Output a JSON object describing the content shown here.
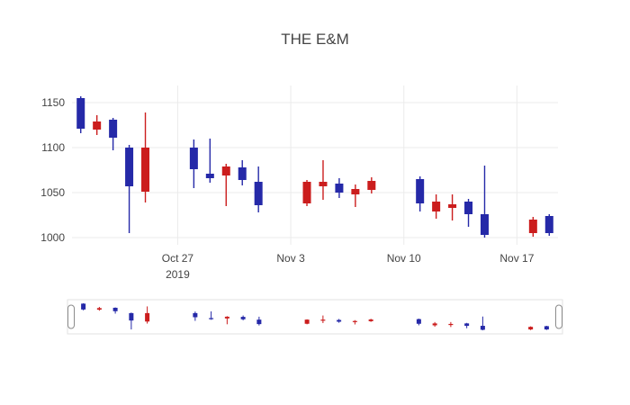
{
  "chart_data": {
    "type": "candlestick",
    "title": "THE E&M",
    "xlabel": "",
    "ylabel": "",
    "yticks": [
      1000,
      1050,
      1100,
      1150
    ],
    "ylim": [
      992,
      1169
    ],
    "xlim": [
      "2019-10-20T11:00:00Z",
      "2019-11-19T13:00:00Z"
    ],
    "xticks": [
      {
        "date": "2019-10-27",
        "label": "Oct 27",
        "sublabel": "2019"
      },
      {
        "date": "2019-11-03",
        "label": "Nov 3"
      },
      {
        "date": "2019-11-10",
        "label": "Nov 10"
      },
      {
        "date": "2019-11-17",
        "label": "Nov 17"
      }
    ],
    "grid": true,
    "legend": false,
    "increasing_color": "#cb1d1d",
    "decreasing_color": "#2529a8",
    "grid_color": "#ebebeb",
    "tick_color": "#444444",
    "slider_border_color": "#e2e2e2",
    "handle_border_color": "#8c8c8c",
    "candles": [
      {
        "date": "2019-10-21",
        "open": 1155,
        "high": 1157,
        "low": 1116,
        "close": 1121
      },
      {
        "date": "2019-10-22",
        "open": 1120,
        "high": 1136,
        "low": 1114,
        "close": 1129
      },
      {
        "date": "2019-10-23",
        "open": 1131,
        "high": 1133,
        "low": 1097,
        "close": 1111
      },
      {
        "date": "2019-10-24",
        "open": 1100,
        "high": 1103,
        "low": 1005,
        "close": 1057
      },
      {
        "date": "2019-10-25",
        "open": 1051,
        "high": 1139,
        "low": 1039,
        "close": 1100
      },
      {
        "date": "2019-10-28",
        "open": 1100,
        "high": 1109,
        "low": 1055,
        "close": 1076
      },
      {
        "date": "2019-10-29",
        "open": 1071,
        "high": 1110,
        "low": 1061,
        "close": 1066
      },
      {
        "date": "2019-10-30",
        "open": 1069,
        "high": 1082,
        "low": 1035,
        "close": 1079
      },
      {
        "date": "2019-10-31",
        "open": 1078,
        "high": 1086,
        "low": 1058,
        "close": 1064
      },
      {
        "date": "2019-11-01",
        "open": 1062,
        "high": 1079,
        "low": 1028,
        "close": 1036
      },
      {
        "date": "2019-11-04",
        "open": 1038,
        "high": 1064,
        "low": 1035,
        "close": 1062
      },
      {
        "date": "2019-11-05",
        "open": 1057,
        "high": 1086,
        "low": 1042,
        "close": 1062
      },
      {
        "date": "2019-11-06",
        "open": 1060,
        "high": 1066,
        "low": 1044,
        "close": 1050
      },
      {
        "date": "2019-11-07",
        "open": 1048,
        "high": 1059,
        "low": 1034,
        "close": 1054
      },
      {
        "date": "2019-11-08",
        "open": 1053,
        "high": 1067,
        "low": 1049,
        "close": 1063
      },
      {
        "date": "2019-11-11",
        "open": 1065,
        "high": 1068,
        "low": 1029,
        "close": 1038
      },
      {
        "date": "2019-11-12",
        "open": 1029,
        "high": 1048,
        "low": 1021,
        "close": 1040
      },
      {
        "date": "2019-11-13",
        "open": 1033,
        "high": 1048,
        "low": 1019,
        "close": 1037
      },
      {
        "date": "2019-11-14",
        "open": 1040,
        "high": 1043,
        "low": 1012,
        "close": 1026
      },
      {
        "date": "2019-11-15",
        "open": 1026,
        "high": 1080,
        "low": 1000,
        "close": 1003
      },
      {
        "date": "2019-11-18",
        "open": 1005,
        "high": 1023,
        "low": 1001,
        "close": 1020
      },
      {
        "date": "2019-11-19",
        "open": 1024,
        "high": 1026,
        "low": 1002,
        "close": 1005
      }
    ]
  }
}
